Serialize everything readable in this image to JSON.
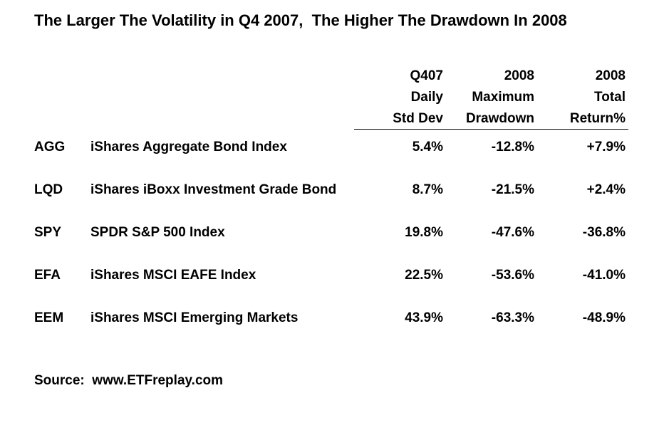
{
  "title": "The Larger The Volatility in Q4 2007,  The Higher The Drawdown In 2008",
  "chart_data": {
    "type": "table",
    "columns": [
      {
        "key": "std_dev",
        "lines": [
          "Q407",
          "Daily",
          "Std Dev"
        ]
      },
      {
        "key": "max_drawdown",
        "lines": [
          "2008",
          "Maximum",
          "Drawdown"
        ]
      },
      {
        "key": "total_return",
        "lines": [
          "2008",
          "Total",
          "Return%"
        ]
      }
    ],
    "rows": [
      {
        "ticker": "AGG",
        "name": "iShares Aggregate Bond Index",
        "std_dev": "5.4%",
        "max_drawdown": "-12.8%",
        "total_return": "+7.9%"
      },
      {
        "ticker": "LQD",
        "name": "iShares iBoxx Investment Grade Bond",
        "std_dev": "8.7%",
        "max_drawdown": "-21.5%",
        "total_return": "+2.4%"
      },
      {
        "ticker": "SPY",
        "name": "SPDR S&P 500 Index",
        "std_dev": "19.8%",
        "max_drawdown": "-47.6%",
        "total_return": "-36.8%"
      },
      {
        "ticker": "EFA",
        "name": "iShares MSCI EAFE Index",
        "std_dev": "22.5%",
        "max_drawdown": "-53.6%",
        "total_return": "-41.0%"
      },
      {
        "ticker": "EEM",
        "name": "iShares MSCI Emerging Markets",
        "std_dev": "43.9%",
        "max_drawdown": "-63.3%",
        "total_return": "-48.9%"
      }
    ]
  },
  "source": "Source:  www.ETFreplay.com"
}
